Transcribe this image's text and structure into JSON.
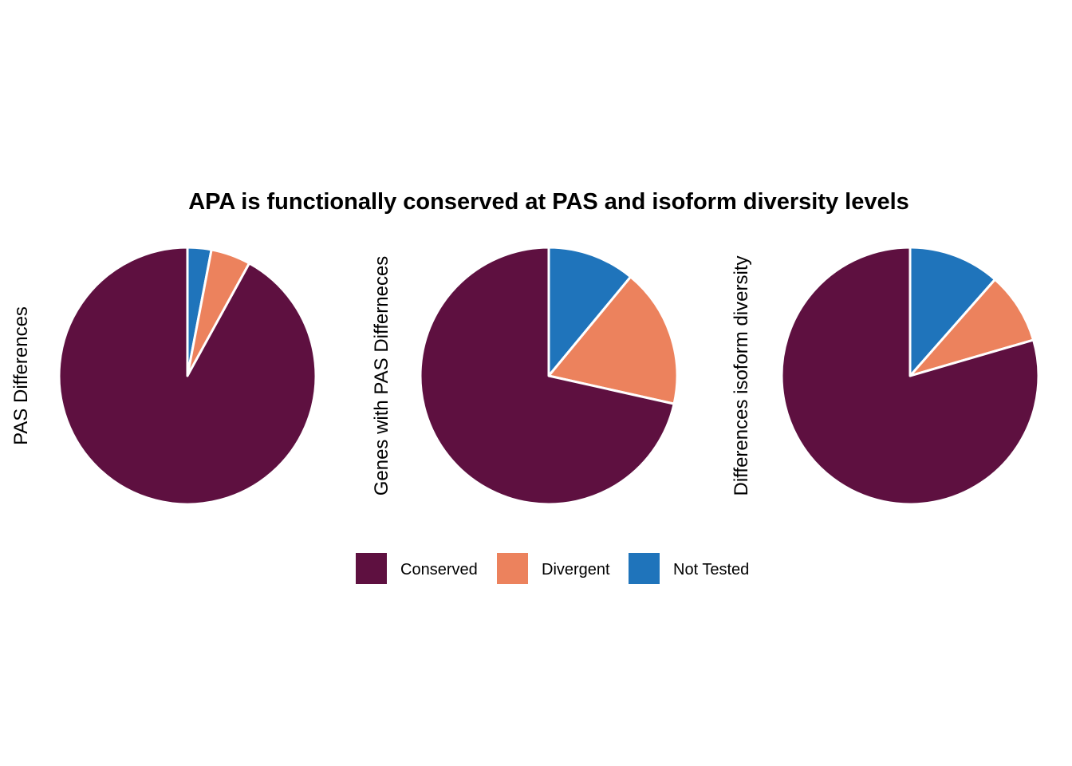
{
  "chart_data": {
    "title": "APA is functionally conserved at PAS and isoform diversity levels",
    "type": "pie",
    "categories": [
      "Conserved",
      "Divergent",
      "Not Tested"
    ],
    "colors": {
      "Conserved": "#5e1040",
      "Divergent": "#ec825d",
      "Not Tested": "#1f74bb"
    },
    "legend": {
      "position": "bottom",
      "entries": [
        "Conserved",
        "Divergent",
        "Not Tested"
      ]
    },
    "charts": [
      {
        "label": "PAS Differences",
        "values": [
          92,
          5,
          3
        ]
      },
      {
        "label": "Genes with PAS Differneces",
        "values": [
          71.5,
          17.5,
          11
        ]
      },
      {
        "label": "Differences isoform diversity",
        "values": [
          79.5,
          9,
          11.5
        ]
      }
    ]
  }
}
